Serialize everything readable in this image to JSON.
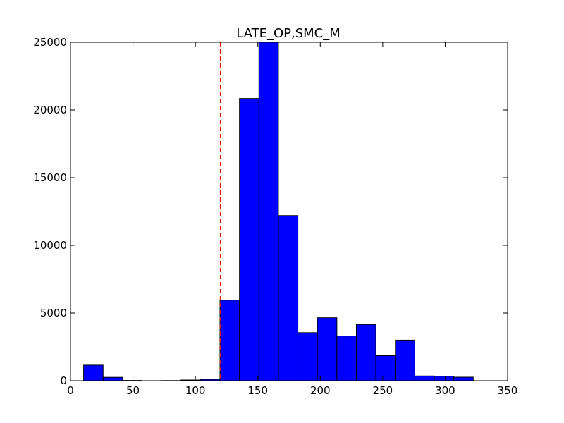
{
  "chart_data": {
    "type": "bar",
    "title": "LATE_OP,SMC_M",
    "xlabel": "",
    "ylabel": "",
    "xlim": [
      0,
      350
    ],
    "ylim": [
      0,
      25000
    ],
    "grid": false,
    "bar_color": "#0000ff",
    "edge_color": "#000000",
    "bins": [
      {
        "x0": 10.5,
        "x1": 26.1,
        "value": 1150
      },
      {
        "x0": 26.1,
        "x1": 41.7,
        "value": 250
      },
      {
        "x0": 41.7,
        "x1": 57.3,
        "value": 20
      },
      {
        "x0": 57.3,
        "x1": 72.9,
        "value": 0
      },
      {
        "x0": 72.9,
        "x1": 88.5,
        "value": 10
      },
      {
        "x0": 88.5,
        "x1": 104.1,
        "value": 50
      },
      {
        "x0": 104.1,
        "x1": 119.7,
        "value": 100
      },
      {
        "x0": 119.7,
        "x1": 135.3,
        "value": 5950
      },
      {
        "x0": 135.3,
        "x1": 150.9,
        "value": 20850
      },
      {
        "x0": 150.9,
        "x1": 166.5,
        "value": 25000
      },
      {
        "x0": 166.5,
        "x1": 182.1,
        "value": 12200
      },
      {
        "x0": 182.1,
        "x1": 197.7,
        "value": 3550
      },
      {
        "x0": 197.7,
        "x1": 213.3,
        "value": 4650
      },
      {
        "x0": 213.3,
        "x1": 228.9,
        "value": 3300
      },
      {
        "x0": 228.9,
        "x1": 244.5,
        "value": 4150
      },
      {
        "x0": 244.5,
        "x1": 260.1,
        "value": 1850
      },
      {
        "x0": 260.1,
        "x1": 275.7,
        "value": 3000
      },
      {
        "x0": 275.7,
        "x1": 291.3,
        "value": 350
      },
      {
        "x0": 291.3,
        "x1": 306.9,
        "value": 330
      },
      {
        "x0": 306.9,
        "x1": 322.5,
        "value": 260
      }
    ],
    "reference_line": {
      "x": 120,
      "color": "#ff0000",
      "style": "dashed"
    },
    "x_ticks": [
      0,
      50,
      100,
      150,
      200,
      250,
      300,
      350
    ],
    "x_tick_labels": [
      "0",
      "50",
      "100",
      "150",
      "200",
      "250",
      "300",
      "350"
    ],
    "y_ticks": [
      0,
      5000,
      10000,
      15000,
      20000,
      25000
    ],
    "y_tick_labels": [
      "0",
      "5000",
      "10000",
      "15000",
      "20000",
      "25000"
    ]
  }
}
